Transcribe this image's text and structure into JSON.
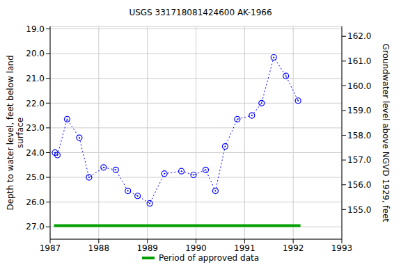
{
  "chart_data": {
    "type": "line",
    "title": "USGS 331718081424600 AK-1966",
    "ylabel": "Depth to water level, feet below land surface",
    "y2label": "Groundwater level above NGVD 1929, feet",
    "x": [
      1987.1,
      1987.15,
      1987.35,
      1987.6,
      1987.8,
      1988.1,
      1988.35,
      1988.6,
      1988.8,
      1989.05,
      1989.35,
      1989.7,
      1989.95,
      1990.2,
      1990.4,
      1990.6,
      1990.85,
      1991.15,
      1991.35,
      1991.6,
      1991.85,
      1992.1
    ],
    "values": [
      24.0,
      24.1,
      22.65,
      23.4,
      25.0,
      24.6,
      24.7,
      25.55,
      25.75,
      26.05,
      24.85,
      24.75,
      24.9,
      24.7,
      25.55,
      23.75,
      22.65,
      22.5,
      22.0,
      20.15,
      20.9,
      21.9
    ],
    "color": "#0000ff",
    "marker": "circle",
    "line_style": "dotted",
    "xlim": [
      1987,
      1993
    ],
    "xticks": [
      1987,
      1988,
      1989,
      1990,
      1991,
      1992,
      1993
    ],
    "ylim": [
      27.5,
      18.9
    ],
    "yticks": [
      {
        "value": 19,
        "label": "19.0"
      },
      {
        "value": 20,
        "label": "20.0"
      },
      {
        "value": 21,
        "label": "21.0"
      },
      {
        "value": 22,
        "label": "22.0"
      },
      {
        "value": 23,
        "label": "23.0"
      },
      {
        "value": 24,
        "label": "24.0"
      },
      {
        "value": 25,
        "label": "25.0"
      },
      {
        "value": 26,
        "label": "26.0"
      },
      {
        "value": 27,
        "label": "27.0"
      }
    ],
    "y2lim": [
      153.8,
      162.4
    ],
    "y2ticks": [
      {
        "value": 155,
        "label": "155.0"
      },
      {
        "value": 156,
        "label": "156.0"
      },
      {
        "value": 157,
        "label": "157.0"
      },
      {
        "value": 158,
        "label": "158.0"
      },
      {
        "value": 159,
        "label": "159.0"
      },
      {
        "value": 160,
        "label": "160.0"
      },
      {
        "value": 161,
        "label": "161.0"
      },
      {
        "value": 162,
        "label": "162.0"
      }
    ],
    "grid": true,
    "legend": "bottom",
    "approved_period": {
      "name": "Period of approved data",
      "x": [
        1987.08,
        1992.15
      ],
      "y": 26.95,
      "color": "#00a000"
    }
  }
}
